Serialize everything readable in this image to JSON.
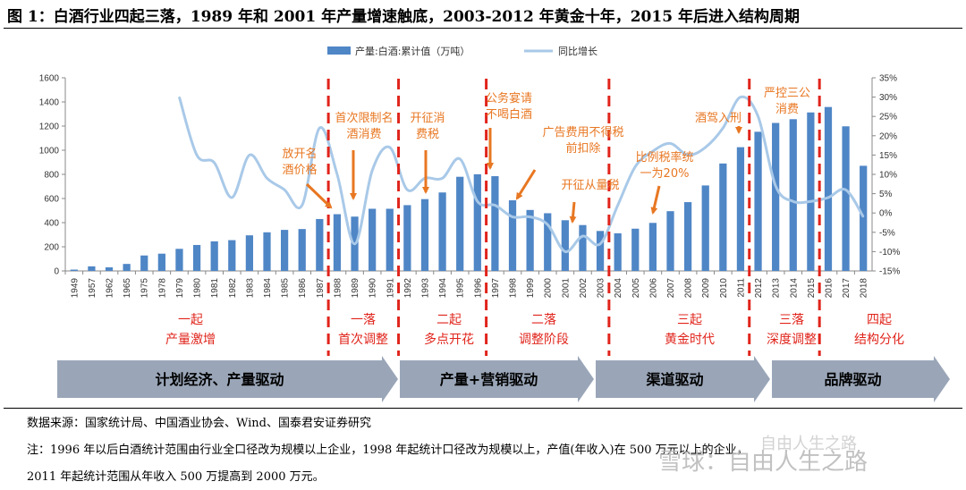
{
  "figure_title": "图 1：白酒行业四起三落，1989 年和 2001 年产量增速触底，2003-2012 年黄金十年，2015 年后进入结构周期",
  "chart_data": {
    "type": "bar+line",
    "categories": [
      "1949",
      "1957",
      "1962",
      "1965",
      "1975",
      "1978",
      "1979",
      "1980",
      "1981",
      "1982",
      "1983",
      "1984",
      "1985",
      "1986",
      "1987",
      "1988",
      "1989",
      "1990",
      "1991",
      "1992",
      "1993",
      "1994",
      "1995",
      "1996",
      "1997",
      "1998",
      "1999",
      "2000",
      "2001",
      "2002",
      "2003",
      "2004",
      "2005",
      "2006",
      "2007",
      "2008",
      "2009",
      "2010",
      "2011",
      "2012",
      "2013",
      "2014",
      "2015",
      "2016",
      "2017",
      "2018"
    ],
    "series": [
      {
        "name": "产量:白酒:累计值（万吨）",
        "type": "bar",
        "axis": "left",
        "color": "#4f86c6",
        "values": [
          11,
          38,
          30,
          58,
          128,
          143,
          183,
          215,
          245,
          255,
          295,
          320,
          340,
          347,
          430,
          470,
          450,
          515,
          515,
          545,
          595,
          650,
          780,
          801,
          785,
          585,
          505,
          478,
          420,
          380,
          331,
          312,
          350,
          398,
          495,
          570,
          708,
          890,
          1025,
          1153,
          1226,
          1257,
          1313,
          1358,
          1198,
          871
        ]
      },
      {
        "name": "同比增长",
        "type": "line",
        "axis": "right",
        "color": "#a9c9e8",
        "values": [
          null,
          null,
          null,
          null,
          null,
          null,
          30,
          15,
          13,
          4,
          15,
          9,
          6,
          2,
          22,
          10,
          -8,
          11,
          17,
          6,
          9,
          9,
          14,
          3,
          2,
          -1,
          -1,
          -3,
          -10,
          -6,
          -8,
          2,
          12,
          16,
          18,
          15,
          17,
          22,
          30,
          25,
          7,
          3,
          3,
          4,
          6,
          -1
        ]
      }
    ],
    "y_left": {
      "min": 0,
      "max": 1600,
      "ticks": [
        "0",
        "200",
        "400",
        "600",
        "800",
        "1000",
        "1200",
        "1400",
        "1600"
      ]
    },
    "y_right": {
      "min": -15,
      "max": 35,
      "ticks": [
        "-15%",
        "-10%",
        "-5%",
        "0%",
        "5%",
        "10%",
        "15%",
        "20%",
        "25%",
        "30%",
        "35%"
      ]
    },
    "legend_position": "top",
    "annotations": [
      {
        "text": [
          "放开名",
          "酒价格"
        ],
        "year": "1988"
      },
      {
        "text": [
          "首次限制名",
          "酒消费"
        ],
        "year": "1989"
      },
      {
        "text": [
          "开征消",
          "费税"
        ],
        "year": "1993"
      },
      {
        "text": [
          "公务宴请",
          "不喝白酒"
        ],
        "year": "1997"
      },
      {
        "text": [
          "广告费用不得税",
          "前扣除"
        ],
        "year": "1999"
      },
      {
        "text": [
          "开征从量税"
        ],
        "year": "2001"
      },
      {
        "text": [
          "比例税率统",
          "一为20%"
        ],
        "year": "2006"
      },
      {
        "text": [
          "酒驾入刑"
        ],
        "year": "2011"
      },
      {
        "text": [
          "严控三公",
          "消费"
        ],
        "year": "2012"
      }
    ],
    "phase_dividers": [
      "1987.5",
      "1991.5",
      "1996.5",
      "2003.5",
      "2011.5",
      "2015.5"
    ],
    "phases": [
      {
        "lines": [
          "一起",
          "产量激增"
        ]
      },
      {
        "lines": [
          "一落",
          "首次调整"
        ]
      },
      {
        "lines": [
          "二起",
          "多点开花"
        ]
      },
      {
        "lines": [
          "二落",
          "调整阶段"
        ]
      },
      {
        "lines": [
          "三起",
          "黄金时代"
        ]
      },
      {
        "lines": [
          "三落",
          "深度调整"
        ]
      },
      {
        "lines": [
          "四起",
          "结构分化"
        ]
      }
    ],
    "drivers": [
      "计划经济、产量驱动",
      "产量+营销驱动",
      "渠道驱动",
      "品牌驱动"
    ]
  },
  "source_line": "数据来源：国家统计局、中国酒业协会、Wind、国泰君安证券研究",
  "note_line1": "注：1996 年以后白酒统计范围由行业全口径改为规模以上企业，1998 年起统计口径改为规模以上，产值(年收入)在 500 万元以上的企业，",
  "note_line2": "2011 年起统计范围从年收入 500 万提高到 2000 万元。",
  "watermark_text": "雪球：自由人生之路",
  "watermark_text2": "自由人生之路"
}
